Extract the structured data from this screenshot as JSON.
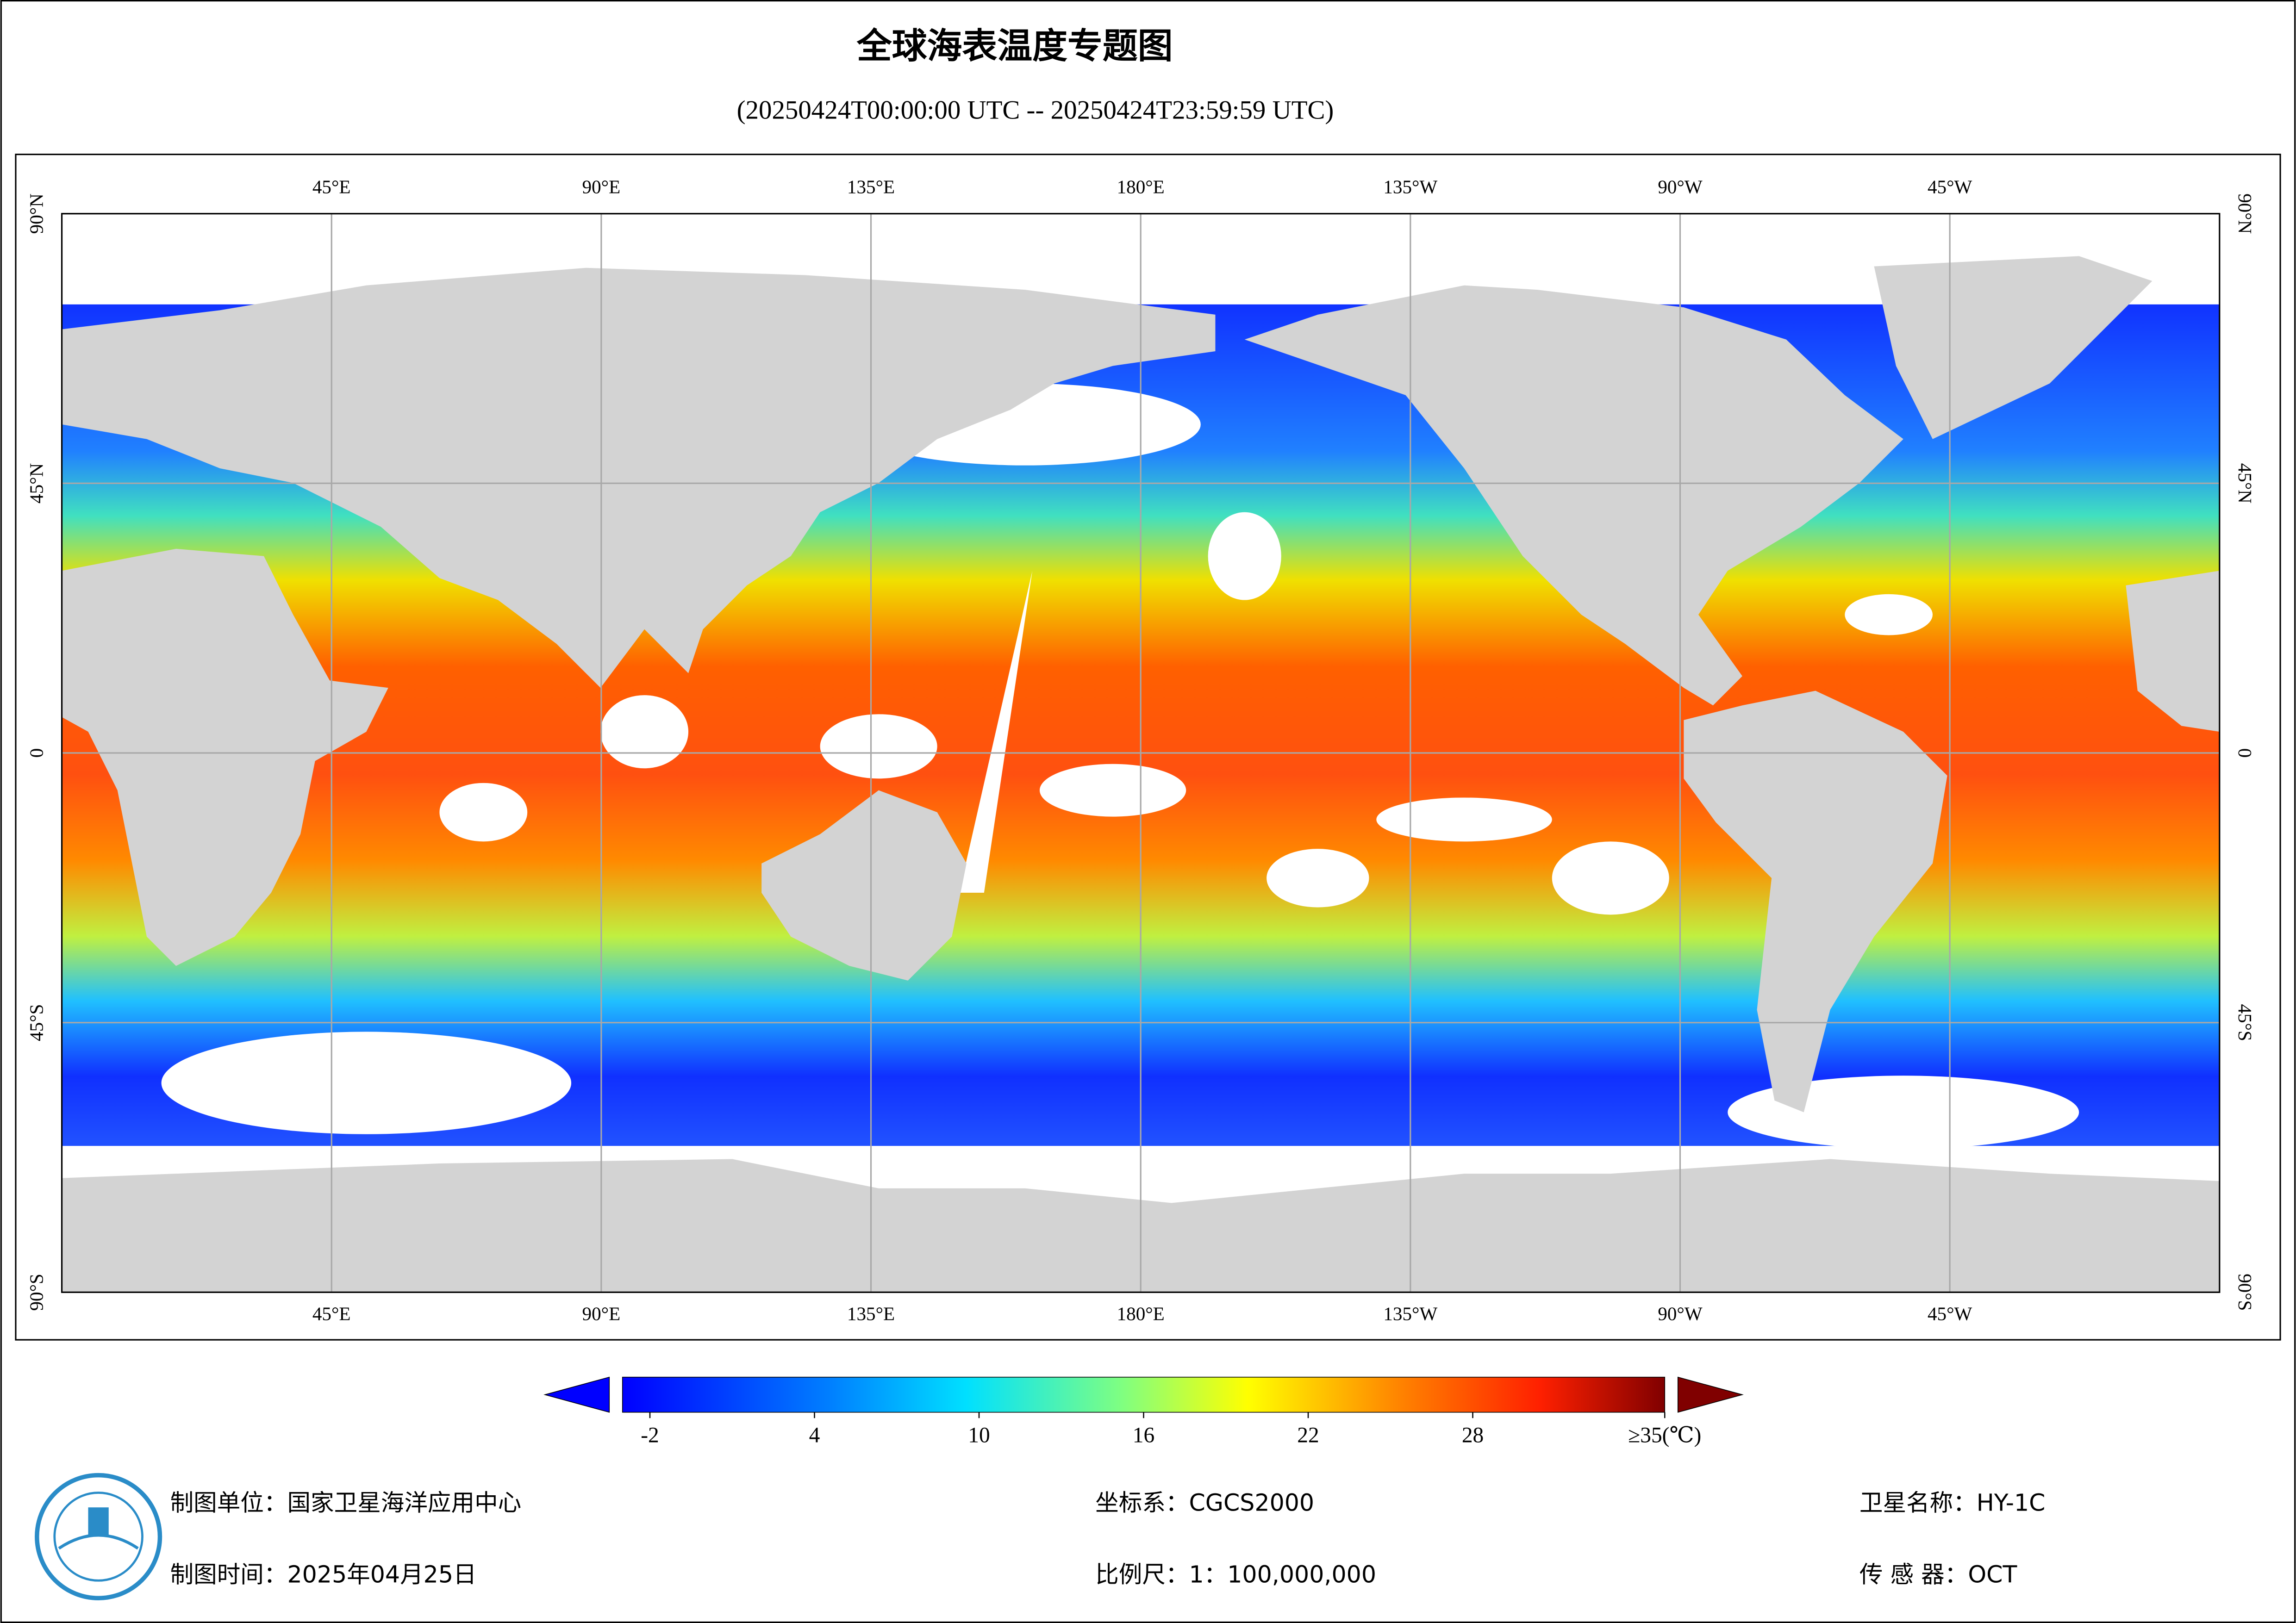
{
  "map": {
    "title": "全球海表温度专题图",
    "subtitle": "(20250424T00:00:00 UTC -- 20250424T23:59:59 UTC)",
    "xlim": [
      0,
      360
    ],
    "ylim": [
      -90,
      90
    ],
    "lon_ticks": [
      {
        "value": 45,
        "label": "45°E"
      },
      {
        "value": 90,
        "label": "90°E"
      },
      {
        "value": 135,
        "label": "135°E"
      },
      {
        "value": 180,
        "label": "180°E"
      },
      {
        "value": 225,
        "label": "135°W"
      },
      {
        "value": 270,
        "label": "90°W"
      },
      {
        "value": 315,
        "label": "45°W"
      }
    ],
    "lat_ticks": [
      {
        "value": 90,
        "label": "90°N"
      },
      {
        "value": 45,
        "label": "45°N"
      },
      0,
      {
        "value": -45,
        "label": "45°S"
      },
      {
        "value": -90,
        "label": "90°S"
      }
    ],
    "colorbar": {
      "lim": [
        -3,
        35
      ],
      "ticks": [
        -2,
        4,
        10,
        16,
        22,
        28,
        {
          "value": 35,
          "label": "≥35(℃)"
        }
      ]
    },
    "footer": {
      "unit": "制图单位：国家卫星海洋应用中心",
      "date": "制图时间：2025年04月25日",
      "crs": "坐标系：CGCS2000",
      "scale": "比例尺：1：100,000,000",
      "satellite": "卫星名称：HY-1C",
      "sensor": "传 感 器：OCT"
    }
  }
}
